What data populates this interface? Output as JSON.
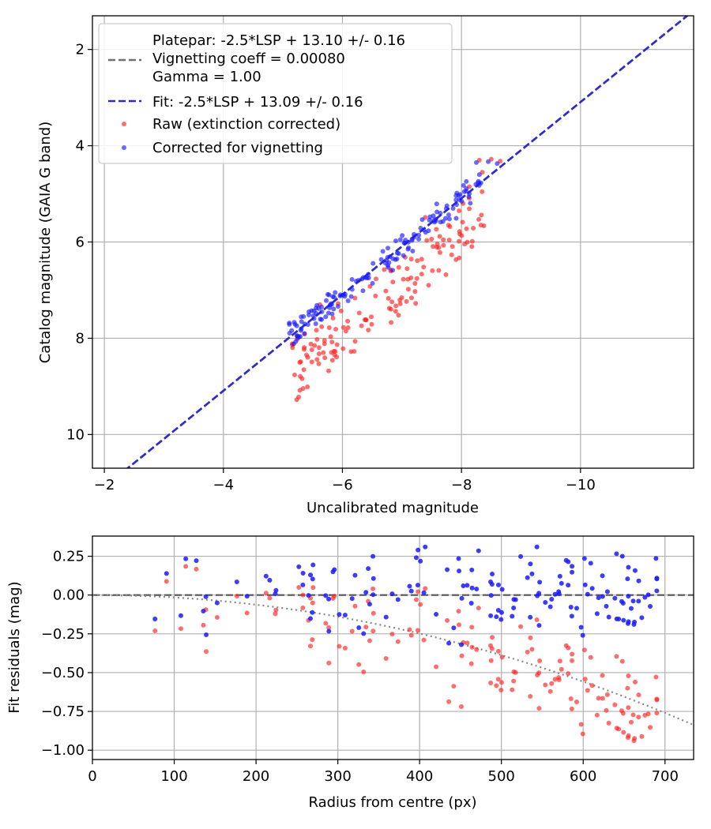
{
  "chart_data": [
    {
      "type": "scatter",
      "title": "",
      "xlabel": "Uncalibrated magnitude",
      "ylabel": "Catalog magnitude (GAIA G band)",
      "xlim": [
        -1.8,
        -11.9
      ],
      "ylim": [
        10.7,
        1.3
      ],
      "x_inverted": true,
      "y_inverted": true,
      "xticks": [
        -2,
        -4,
        -6,
        -8,
        -10
      ],
      "xtick_labels": [
        "−2",
        "−4",
        "−6",
        "−8",
        "−10"
      ],
      "yticks": [
        2,
        4,
        6,
        8,
        10
      ],
      "ytick_labels": [
        "2",
        "4",
        "6",
        "8",
        "10"
      ],
      "grid": true,
      "legend_position": "top-left",
      "legend": {
        "platepar_lines": [
          "Platepar: -2.5*LSP + 13.10 +/- 0.16",
          "Vignetting coeff = 0.00080",
          "Gamma = 1.00"
        ],
        "fit": "Fit: -2.5*LSP + 13.09 +/- 0.16",
        "raw": "Raw (extinction corrected)",
        "corrected": "Corrected for vignetting"
      },
      "lines": [
        {
          "name": "Platepar: -2.5*LSP + 13.10 +/- 0.16",
          "slope": 1.0,
          "intercept": 13.1,
          "color": "#707070",
          "style": "dashed"
        },
        {
          "name": "Fit: -2.5*LSP + 13.09 +/- 0.16",
          "slope": 1.0,
          "intercept": 13.09,
          "color": "#2b2bd6",
          "style": "dashed"
        }
      ],
      "series": [
        {
          "name": "Raw (extinction corrected)",
          "color": "#ff2020",
          "marker": "circle",
          "x_range": [
            -4.95,
            -8.45
          ],
          "point_count": 150
        },
        {
          "name": "Corrected for vignetting",
          "color": "#1a1aff",
          "marker": "circle",
          "x_range": [
            -5.1,
            -8.7
          ],
          "point_count": 150
        }
      ]
    },
    {
      "type": "scatter",
      "title": "",
      "xlabel": "Radius from centre (px)",
      "ylabel": "Fit residuals (mag)",
      "xlim": [
        0,
        735
      ],
      "ylim": [
        -1.06,
        0.38
      ],
      "xticks": [
        0,
        100,
        200,
        300,
        400,
        500,
        600,
        700
      ],
      "xtick_labels": [
        "0",
        "100",
        "200",
        "300",
        "400",
        "500",
        "600",
        "700"
      ],
      "yticks": [
        0.25,
        0.0,
        -0.25,
        -0.5,
        -0.75,
        -1.0
      ],
      "ytick_labels": [
        "0.25",
        "0.00",
        "−0.25",
        "−0.50",
        "−0.75",
        "−1.00"
      ],
      "grid": true,
      "lines": [
        {
          "name": "zero line",
          "y": 0.0,
          "color": "#555555",
          "style": "dashed"
        },
        {
          "name": "vignetting model",
          "vignetting_coeff": 0.0008,
          "color": "#888888",
          "style": "dotted"
        }
      ],
      "series": [
        {
          "name": "Raw (extinction corrected)",
          "color": "#ff2020",
          "marker": "circle"
        },
        {
          "name": "Corrected for vignetting",
          "color": "#1a1aff",
          "marker": "circle"
        }
      ]
    }
  ]
}
